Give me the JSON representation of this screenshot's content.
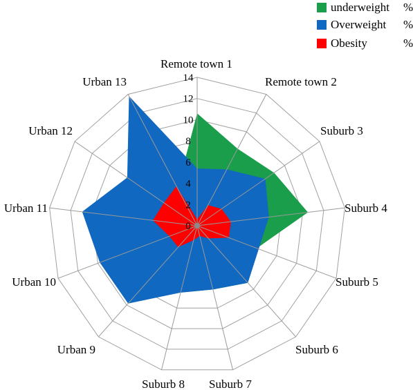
{
  "chart_data": {
    "type": "radar",
    "categories": [
      "Remote town 1",
      "Remote town 2",
      "Suburb  3",
      "Suburb  4",
      "Suburb  5",
      "Suburb  6",
      "Suburb  7",
      "Suburb  8",
      "Urban  9",
      "Urban  10",
      "Urban  11",
      "Urban  12",
      "Urban  13"
    ],
    "rlim": [
      0,
      14
    ],
    "r_ticks": [
      "0",
      "2",
      "4",
      "6",
      "8",
      "10",
      "12",
      "14"
    ],
    "series": [
      {
        "name": "underweight",
        "unit": "%",
        "color": "#1a9e4b",
        "values": [
          10.6,
          8.2,
          8.8,
          10.5,
          6.0,
          7.2,
          6.2,
          6.5,
          6.5,
          8.2,
          10.5,
          8.0,
          4.0
        ]
      },
      {
        "name": "Overweight",
        "unit": "%",
        "color": "#1068c0",
        "values": [
          5.4,
          6.0,
          7.8,
          6.8,
          6.2,
          7.2,
          6.2,
          6.5,
          9.8,
          9.8,
          10.9,
          8.0,
          13.8
        ]
      },
      {
        "name": "Obesity",
        "unit": "%",
        "color": "#ff0000",
        "values": [
          0.6,
          2.2,
          2.8,
          3.2,
          3.2,
          1.6,
          1.0,
          1.4,
          2.7,
          2.8,
          4.2,
          3.8,
          4.2
        ]
      }
    ],
    "legend_position": "top-right",
    "grid": true
  }
}
